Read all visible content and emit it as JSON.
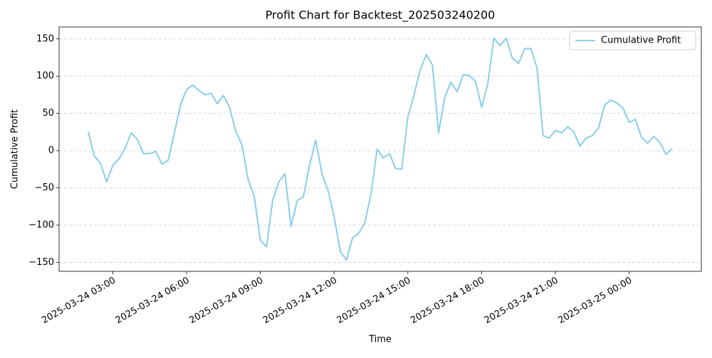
{
  "chart_data": {
    "type": "line",
    "title": "Profit Chart for Backtest_202503240200",
    "xlabel": "Time",
    "ylabel": "Cumulative Profit",
    "x": [
      "2025-03-24 02:00",
      "2025-03-24 02:15",
      "2025-03-24 02:30",
      "2025-03-24 02:45",
      "2025-03-24 03:00",
      "2025-03-24 03:15",
      "2025-03-24 03:30",
      "2025-03-24 03:45",
      "2025-03-24 04:00",
      "2025-03-24 04:15",
      "2025-03-24 04:30",
      "2025-03-24 04:45",
      "2025-03-24 05:00",
      "2025-03-24 05:15",
      "2025-03-24 05:30",
      "2025-03-24 05:45",
      "2025-03-24 06:00",
      "2025-03-24 06:15",
      "2025-03-24 06:30",
      "2025-03-24 06:45",
      "2025-03-24 07:00",
      "2025-03-24 07:15",
      "2025-03-24 07:30",
      "2025-03-24 07:45",
      "2025-03-24 08:00",
      "2025-03-24 08:15",
      "2025-03-24 08:30",
      "2025-03-24 08:45",
      "2025-03-24 09:00",
      "2025-03-24 09:15",
      "2025-03-24 09:30",
      "2025-03-24 09:45",
      "2025-03-24 10:00",
      "2025-03-24 10:15",
      "2025-03-24 10:30",
      "2025-03-24 10:45",
      "2025-03-24 11:00",
      "2025-03-24 11:15",
      "2025-03-24 11:30",
      "2025-03-24 11:45",
      "2025-03-24 12:00",
      "2025-03-24 12:15",
      "2025-03-24 12:30",
      "2025-03-24 12:45",
      "2025-03-24 13:00",
      "2025-03-24 13:15",
      "2025-03-24 13:30",
      "2025-03-24 13:45",
      "2025-03-24 14:00",
      "2025-03-24 14:15",
      "2025-03-24 14:30",
      "2025-03-24 14:45",
      "2025-03-24 15:00",
      "2025-03-24 15:15",
      "2025-03-24 15:30",
      "2025-03-24 15:45",
      "2025-03-24 16:00",
      "2025-03-24 16:15",
      "2025-03-24 16:30",
      "2025-03-24 16:45",
      "2025-03-24 17:00",
      "2025-03-24 17:15",
      "2025-03-24 17:30",
      "2025-03-24 17:45",
      "2025-03-24 18:00",
      "2025-03-24 18:15",
      "2025-03-24 18:30",
      "2025-03-24 18:45",
      "2025-03-24 19:00",
      "2025-03-24 19:15",
      "2025-03-24 19:30",
      "2025-03-24 19:45",
      "2025-03-24 20:00",
      "2025-03-24 20:15",
      "2025-03-24 20:30",
      "2025-03-24 20:45",
      "2025-03-24 21:00",
      "2025-03-24 21:15",
      "2025-03-24 21:30",
      "2025-03-24 21:45",
      "2025-03-24 22:00",
      "2025-03-24 22:15",
      "2025-03-24 22:30",
      "2025-03-24 22:45",
      "2025-03-24 23:00",
      "2025-03-24 23:15",
      "2025-03-24 23:30",
      "2025-03-24 23:45",
      "2025-03-25 00:00",
      "2025-03-25 00:15",
      "2025-03-25 00:30",
      "2025-03-25 00:45",
      "2025-03-25 01:00",
      "2025-03-25 01:15",
      "2025-03-25 01:30",
      "2025-03-25 01:45"
    ],
    "series": [
      {
        "name": "Cumulative Profit",
        "color": "#87ceeb",
        "values": [
          25,
          -7,
          -17,
          -42,
          -20,
          -11,
          3,
          24,
          15,
          -4,
          -4,
          -1,
          -18,
          -13,
          23,
          61,
          82,
          88,
          81,
          75,
          77,
          63,
          74,
          58,
          26,
          8,
          -38,
          -61,
          -120,
          -129,
          -67,
          -42,
          -31,
          -102,
          -67,
          -62,
          -20,
          14,
          -30,
          -53,
          -88,
          -135,
          -147,
          -117,
          -111,
          -97,
          -58,
          2,
          -10,
          -4,
          -24,
          -25,
          45,
          75,
          108,
          129,
          115,
          24,
          72,
          92,
          79,
          102,
          101,
          93,
          58,
          90,
          151,
          141,
          151,
          124,
          117,
          137,
          137,
          111,
          20,
          17,
          27,
          24,
          32,
          25,
          6,
          17,
          20,
          30,
          61,
          68,
          64,
          57,
          38,
          42,
          18,
          10,
          19,
          11,
          -5,
          3
        ]
      }
    ],
    "xlim": [
      "2025-03-24 00:49",
      "2025-03-25 02:56"
    ],
    "xticks": [
      "2025-03-24 03:00",
      "2025-03-24 06:00",
      "2025-03-24 09:00",
      "2025-03-24 12:00",
      "2025-03-24 15:00",
      "2025-03-24 18:00",
      "2025-03-24 21:00",
      "2025-03-25 00:00"
    ],
    "ylim": [
      -162,
      166
    ],
    "yticks": [
      {
        "value": -150,
        "label": "−150"
      },
      {
        "value": -100,
        "label": "−100"
      },
      {
        "value": -50,
        "label": "−50"
      },
      0,
      50,
      100,
      150
    ],
    "grid": true,
    "legend": "upper right"
  }
}
